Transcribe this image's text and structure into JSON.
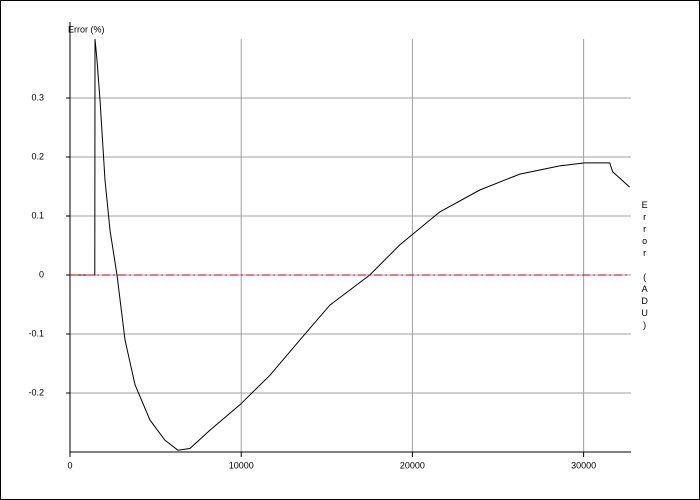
{
  "chart_data": {
    "type": "line",
    "y_label": "Error (%)",
    "y2_label": "Error (ADU)",
    "xlim": [
      0,
      32768
    ],
    "xticks": [
      0,
      10000,
      20000,
      30000
    ],
    "ylim": [
      -0.3,
      0.4
    ],
    "yticks": [
      -0.2,
      -0.1,
      0,
      0.1,
      0.2,
      0.3
    ],
    "grid": true,
    "series": [
      {
        "color": "#000000",
        "x": [
          0,
          1450,
          1460,
          1576,
          1751,
          2043,
          2335,
          2744,
          3211,
          3795,
          4670,
          5546,
          6305,
          7005,
          8173,
          9924,
          11675,
          13427,
          15178,
          17513,
          19264,
          21600,
          23935,
          26270,
          28605,
          30064,
          31524,
          31699,
          32691
        ],
        "values": [
          0,
          0,
          0.4,
          0.364,
          0.297,
          0.161,
          0.076,
          0,
          -0.11,
          -0.186,
          -0.246,
          -0.28,
          -0.297,
          -0.294,
          -0.263,
          -0.22,
          -0.17,
          -0.11,
          -0.051,
          0,
          0.051,
          0.107,
          0.144,
          0.171,
          0.185,
          0.19,
          0.19,
          0.175,
          0.149
        ]
      },
      {
        "color": "#c00000",
        "dash": "8 3 2 3",
        "x": [
          0,
          32768
        ],
        "values": [
          0,
          0
        ]
      }
    ]
  }
}
